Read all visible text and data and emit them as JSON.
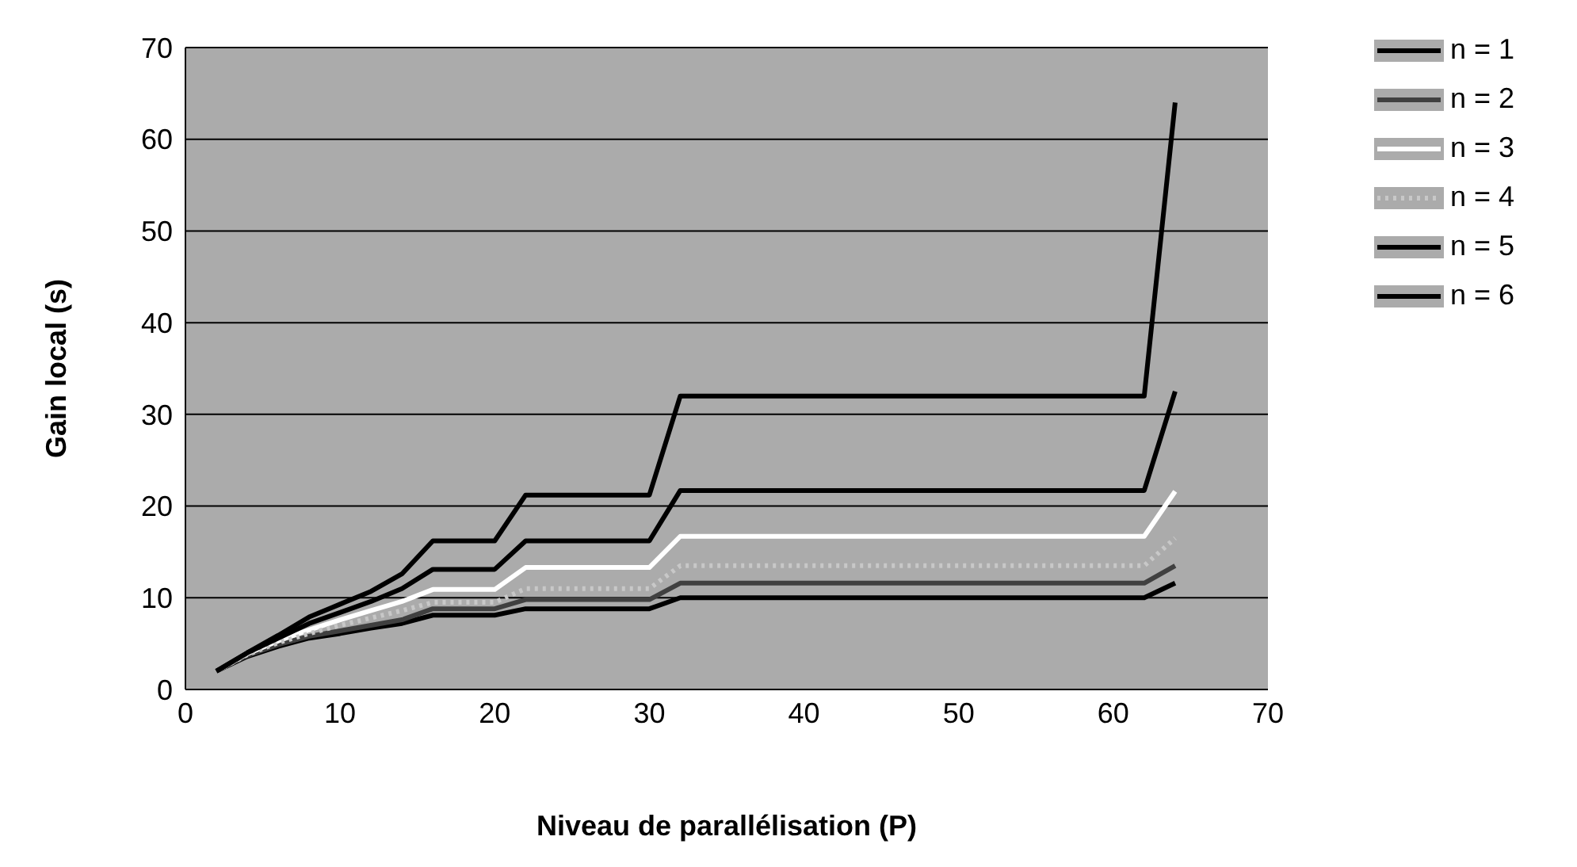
{
  "chart_data": {
    "type": "line",
    "xlabel": "Niveau de parallélisation (P)",
    "ylabel": "Gain local (s)",
    "x": [
      2,
      4,
      6,
      8,
      10,
      12,
      14,
      16,
      20,
      22,
      30,
      32,
      62,
      64
    ],
    "series": [
      {
        "name": "n = 1",
        "color": "#000000",
        "values": [
          2,
          3.6,
          4.7,
          5.6,
          6.1,
          6.7,
          7.2,
          8.1,
          8.1,
          8.8,
          8.8,
          10,
          10,
          11.6
        ]
      },
      {
        "name": "n = 2",
        "color": "#404040",
        "values": [
          2,
          3.7,
          4.9,
          5.8,
          6.4,
          7,
          7.6,
          8.8,
          8.8,
          9.8,
          9.8,
          11.6,
          11.6,
          13.5
        ]
      },
      {
        "name": "n = 3",
        "color": "#ffffff",
        "values": [
          2,
          3.9,
          5.3,
          6.5,
          7.6,
          8.6,
          9.6,
          10.9,
          10.9,
          13.3,
          13.3,
          16.7,
          16.7,
          21.6
        ]
      },
      {
        "name": "n = 4",
        "color": "#c8c8c8",
        "line_style": "dotted",
        "values": [
          2,
          3.8,
          5.1,
          6.1,
          7,
          7.8,
          8.6,
          9.5,
          9.5,
          11,
          11,
          13.5,
          13.5,
          16.5
        ]
      },
      {
        "name": "n = 5",
        "color": "#000000",
        "values": [
          2,
          4,
          5.6,
          7.2,
          8.4,
          9.6,
          11,
          13.1,
          13.1,
          16.2,
          16.2,
          21.7,
          21.7,
          32.5
        ]
      },
      {
        "name": "n = 6",
        "color": "#000000",
        "values": [
          2,
          4,
          5.9,
          7.9,
          9.3,
          10.7,
          12.6,
          16.2,
          16.2,
          21.2,
          21.2,
          32,
          32,
          64
        ]
      }
    ],
    "xlim": [
      0,
      70
    ],
    "xticks": [
      0,
      10,
      20,
      30,
      40,
      50,
      60,
      70
    ],
    "ylim": [
      0,
      70
    ],
    "yticks": [
      0,
      10,
      20,
      30,
      40,
      50,
      60,
      70
    ],
    "grid": "y",
    "legend": "top right",
    "marker": "none",
    "line_style": "solid"
  }
}
